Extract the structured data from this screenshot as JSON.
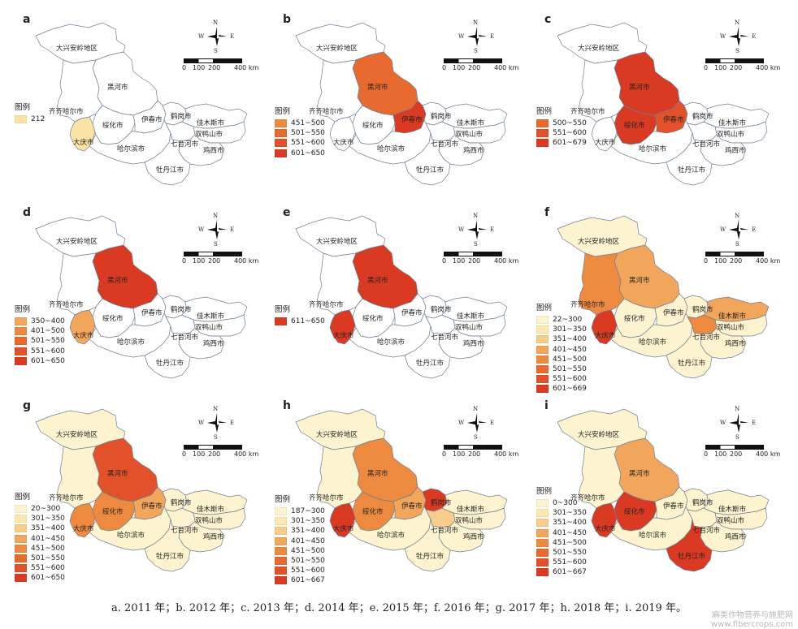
{
  "colors": {
    "c212": "#fbe3a5",
    "c20_300": "#fdf3cf",
    "c301_350": "#fce8ad",
    "c351_400": "#f8cc8a",
    "c401_450": "#f1a65c",
    "c451_500": "#ed8a3f",
    "c501_550": "#e86a2e",
    "c551_600": "#e3512b",
    "c601_plus": "#da3a22"
  },
  "legend_title": "图例",
  "compass": {
    "n": "N",
    "s": "S",
    "w": "W",
    "e": "E"
  },
  "scale": {
    "t0": "0",
    "t100": "100",
    "t200": "200",
    "t400": "400 km"
  },
  "cities": {
    "daxinganling": "大兴安岭地区",
    "heihe": "黑河市",
    "qiqihar": "齐齐哈尔市",
    "daqing": "大庆市",
    "suihua": "绥化市",
    "yichun": "伊春市",
    "hegang": "鹤岗市",
    "jiamusi": "佳木斯市",
    "shuangyashan": "双鸭山市",
    "harbin": "哈尔滨市",
    "qitaihe": "七台河市",
    "jixi": "鸡西市",
    "mudanjiang": "牡丹江市"
  },
  "panels": [
    {
      "id": "a",
      "year": "2011",
      "legend": [
        {
          "label": "212",
          "color": "c212"
        }
      ],
      "fills": {
        "daqing": "c212"
      }
    },
    {
      "id": "b",
      "year": "2012",
      "legend": [
        {
          "label": "451~500",
          "color": "c451_500"
        },
        {
          "label": "501~550",
          "color": "c501_550"
        },
        {
          "label": "551~600",
          "color": "c551_600"
        },
        {
          "label": "601~650",
          "color": "c601_plus"
        }
      ],
      "fills": {
        "heihe": "c501_550",
        "yichun": "c601_plus"
      }
    },
    {
      "id": "c",
      "year": "2013",
      "legend": [
        {
          "label": "500~550",
          "color": "c501_550"
        },
        {
          "label": "551~600",
          "color": "c551_600"
        },
        {
          "label": "601~679",
          "color": "c601_plus"
        }
      ],
      "fills": {
        "heihe": "c601_plus",
        "suihua": "c601_plus",
        "yichun": "c551_600"
      }
    },
    {
      "id": "d",
      "year": "2014",
      "legend": [
        {
          "label": "350~400",
          "color": "c401_450"
        },
        {
          "label": "401~500",
          "color": "c451_500"
        },
        {
          "label": "501~550",
          "color": "c501_550"
        },
        {
          "label": "551~600",
          "color": "c551_600"
        },
        {
          "label": "601~650",
          "color": "c601_plus"
        }
      ],
      "fills": {
        "heihe": "c601_plus",
        "daqing": "c401_450"
      }
    },
    {
      "id": "e",
      "year": "2015",
      "legend": [
        {
          "label": "611~650",
          "color": "c601_plus"
        }
      ],
      "fills": {
        "heihe": "c601_plus",
        "daqing": "c601_plus"
      }
    },
    {
      "id": "f",
      "year": "2016",
      "legend": [
        {
          "label": "22~300",
          "color": "c20_300"
        },
        {
          "label": "301~350",
          "color": "c301_350"
        },
        {
          "label": "351~400",
          "color": "c351_400"
        },
        {
          "label": "401~450",
          "color": "c401_450"
        },
        {
          "label": "451~500",
          "color": "c451_500"
        },
        {
          "label": "501~550",
          "color": "c501_550"
        },
        {
          "label": "551~600",
          "color": "c551_600"
        },
        {
          "label": "601~669",
          "color": "c601_plus"
        }
      ],
      "fills": {
        "daxinganling": "c20_300",
        "heihe": "c401_450",
        "qiqihar": "c451_500",
        "daqing": "c601_plus",
        "suihua": "c20_300",
        "yichun": "c20_300",
        "hegang": "c20_300",
        "jiamusi": "c401_450",
        "shuangyashan": "c20_300",
        "harbin": "c20_300",
        "qitaihe": "c451_500",
        "jixi": "c20_300",
        "mudanjiang": "c20_300"
      }
    },
    {
      "id": "g",
      "year": "2017",
      "legend": [
        {
          "label": "20~300",
          "color": "c20_300"
        },
        {
          "label": "301~350",
          "color": "c301_350"
        },
        {
          "label": "351~400",
          "color": "c351_400"
        },
        {
          "label": "401~450",
          "color": "c401_450"
        },
        {
          "label": "451~500",
          "color": "c451_500"
        },
        {
          "label": "501~550",
          "color": "c501_550"
        },
        {
          "label": "551~600",
          "color": "c551_600"
        },
        {
          "label": "601~650",
          "color": "c601_plus"
        }
      ],
      "fills": {
        "daxinganling": "c20_300",
        "heihe": "c551_600",
        "qiqihar": "c20_300",
        "daqing": "c451_500",
        "suihua": "c451_500",
        "yichun": "c401_450",
        "hegang": "c20_300",
        "jiamusi": "c20_300",
        "shuangyashan": "c20_300",
        "harbin": "c20_300",
        "qitaihe": "c20_300",
        "jixi": "c20_300",
        "mudanjiang": "c20_300"
      }
    },
    {
      "id": "h",
      "year": "2018",
      "legend": [
        {
          "label": "187~300",
          "color": "c20_300"
        },
        {
          "label": "301~350",
          "color": "c301_350"
        },
        {
          "label": "351~400",
          "color": "c351_400"
        },
        {
          "label": "401~450",
          "color": "c401_450"
        },
        {
          "label": "451~500",
          "color": "c451_500"
        },
        {
          "label": "501~550",
          "color": "c501_550"
        },
        {
          "label": "551~600",
          "color": "c551_600"
        },
        {
          "label": "601~667",
          "color": "c601_plus"
        }
      ],
      "fills": {
        "daxinganling": "c20_300",
        "heihe": "c451_500",
        "qiqihar": "c20_300",
        "daqing": "c601_plus",
        "suihua": "c451_500",
        "yichun": "c401_450",
        "hegang": "c601_plus",
        "jiamusi": "c20_300",
        "shuangyashan": "c20_300",
        "harbin": "c20_300",
        "qitaihe": "c351_400",
        "jixi": "c20_300",
        "mudanjiang": "c20_300"
      }
    },
    {
      "id": "i",
      "year": "2019",
      "legend": [
        {
          "label": "0~300",
          "color": "c20_300"
        },
        {
          "label": "301~350",
          "color": "c301_350"
        },
        {
          "label": "351~400",
          "color": "c351_400"
        },
        {
          "label": "401~450",
          "color": "c401_450"
        },
        {
          "label": "451~500",
          "color": "c451_500"
        },
        {
          "label": "501~550",
          "color": "c501_550"
        },
        {
          "label": "551~600",
          "color": "c551_600"
        },
        {
          "label": "601~667",
          "color": "c601_plus"
        }
      ],
      "fills": {
        "daxinganling": "c20_300",
        "heihe": "c401_450",
        "qiqihar": "c20_300",
        "daqing": "c601_plus",
        "suihua": "c601_plus",
        "yichun": "c20_300",
        "hegang": "c20_300",
        "jiamusi": "c20_300",
        "shuangyashan": "c20_300",
        "harbin": "c20_300",
        "qitaihe": "c20_300",
        "jixi": "c20_300",
        "mudanjiang": "c601_plus"
      }
    }
  ],
  "caption": "a. 2011 年；b. 2012 年；c. 2013 年；d. 2014 年；e. 2015 年；f. 2016 年；g. 2017 年；h. 2018 年；i. 2019 年。",
  "watermark": {
    "line1": "麻类作物营养与施肥网",
    "line2": "www.fibercrops.com"
  }
}
